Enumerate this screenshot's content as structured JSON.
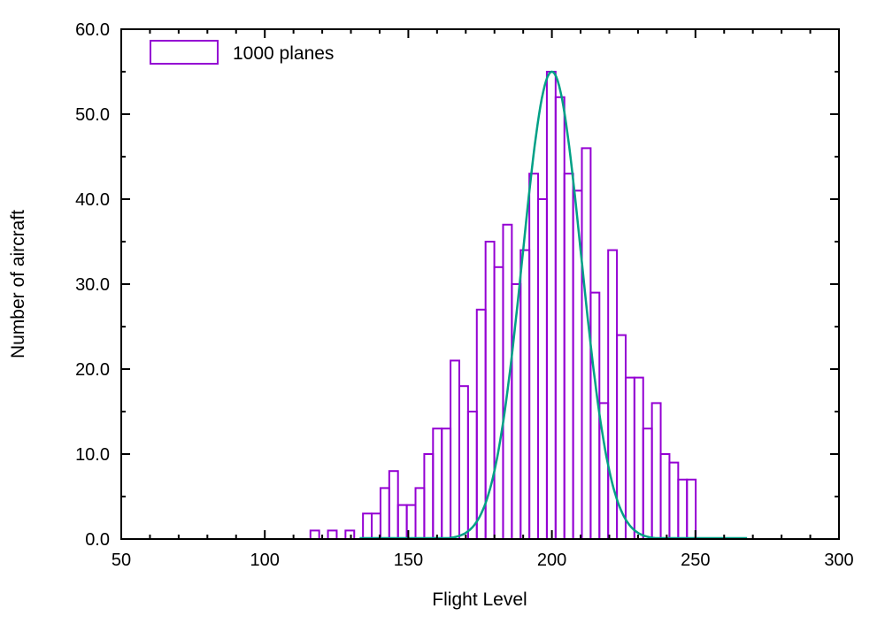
{
  "chart_data": {
    "type": "bar",
    "title": "",
    "xlabel": "Flight Level",
    "ylabel": "Number of aircraft",
    "xlim": [
      50,
      300
    ],
    "ylim": [
      0,
      60
    ],
    "grid": false,
    "x_major_ticks": {
      "values": [
        50,
        100,
        150,
        200,
        250,
        300
      ],
      "labels": [
        "50",
        "100",
        "150",
        "200",
        "250",
        "300"
      ]
    },
    "x_minor_step": 10,
    "y_major_ticks": {
      "values": [
        0,
        10,
        20,
        30,
        40,
        50,
        60
      ],
      "labels": [
        "0.0",
        "10.0",
        "20.0",
        "30.0",
        "40.0",
        "50.0",
        "60.0"
      ]
    },
    "y_minor_step": 5,
    "legend": {
      "label": "1000 planes",
      "position": "top-left",
      "swatch_color": "#9400d3"
    },
    "bars": {
      "name": "1000 planes",
      "color": "#9400d3",
      "fill": "none",
      "bin_start_fl": 115.9,
      "bin_width_fl": 3.05,
      "heights": [
        1,
        0,
        1,
        0,
        1,
        0,
        3,
        3,
        6,
        8,
        4,
        4,
        6,
        10,
        13,
        13,
        21,
        18,
        15,
        27,
        35,
        32,
        37,
        30,
        34,
        43,
        40,
        55,
        52,
        43,
        41,
        46,
        29,
        16,
        34,
        24,
        19,
        19,
        13,
        16,
        10,
        9,
        7,
        7
      ]
    },
    "curve": {
      "type": "gaussian",
      "amplitude": 55,
      "mean": 200,
      "sigma": 10.2,
      "color": "#00a086",
      "x_range": [
        133,
        268
      ]
    }
  }
}
